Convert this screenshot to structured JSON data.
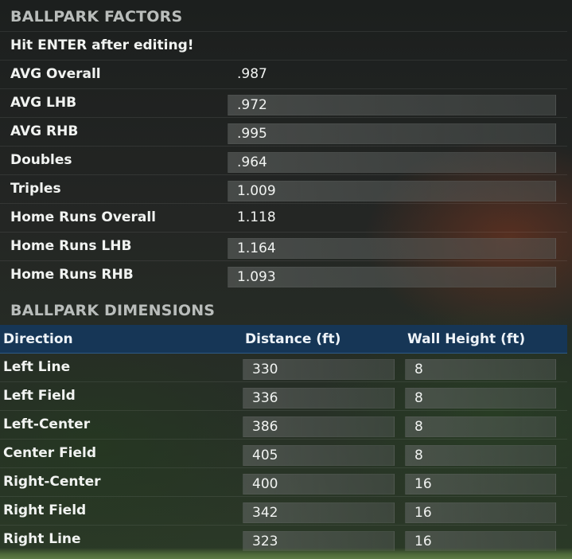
{
  "factors": {
    "title": "BALLPARK FACTORS",
    "note": "Hit ENTER after editing!",
    "rows": [
      {
        "label": "AVG Overall",
        "value": ".987",
        "editable": false
      },
      {
        "label": "AVG LHB",
        "value": ".972",
        "editable": true
      },
      {
        "label": "AVG RHB",
        "value": ".995",
        "editable": true
      },
      {
        "label": "Doubles",
        "value": ".964",
        "editable": true
      },
      {
        "label": "Triples",
        "value": "1.009",
        "editable": true
      },
      {
        "label": "Home Runs Overall",
        "value": "1.118",
        "editable": false
      },
      {
        "label": "Home Runs LHB",
        "value": "1.164",
        "editable": true
      },
      {
        "label": "Home Runs RHB",
        "value": "1.093",
        "editable": true
      }
    ]
  },
  "dimensions": {
    "title": "BALLPARK DIMENSIONS",
    "headers": {
      "direction": "Direction",
      "distance": "Distance (ft)",
      "wall_height": "Wall Height (ft)"
    },
    "rows": [
      {
        "direction": "Left Line",
        "distance": "330",
        "wall_height": "8"
      },
      {
        "direction": "Left Field",
        "distance": "336",
        "wall_height": "8"
      },
      {
        "direction": "Left-Center",
        "distance": "386",
        "wall_height": "8"
      },
      {
        "direction": "Center Field",
        "distance": "405",
        "wall_height": "8"
      },
      {
        "direction": "Right-Center",
        "distance": "400",
        "wall_height": "16"
      },
      {
        "direction": "Right Field",
        "distance": "342",
        "wall_height": "16"
      },
      {
        "direction": "Right Line",
        "distance": "323",
        "wall_height": "16"
      }
    ]
  },
  "colors": {
    "header_bg": "#163656",
    "section_title": "#b9bdbb",
    "text": "#f1f3f1"
  }
}
